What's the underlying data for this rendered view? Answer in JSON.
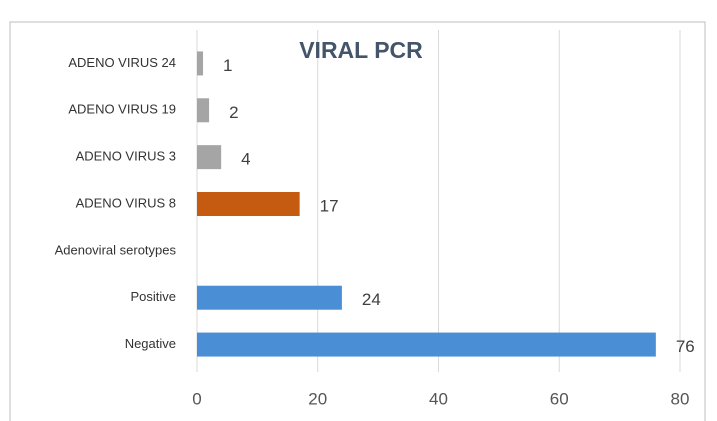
{
  "chart_data": {
    "type": "bar",
    "orientation": "horizontal",
    "title": "VIRAL PCR",
    "categories": [
      "ADENO VIRUS 24",
      "ADENO VIRUS 19",
      "ADENO VIRUS 3",
      "ADENO VIRUS 8",
      "Adenoviral serotypes",
      "Positive",
      "Negative"
    ],
    "values": [
      1,
      2,
      4,
      17,
      null,
      24,
      76
    ],
    "colors": [
      "#a5a5a5",
      "#a5a5a5",
      "#a5a5a5",
      "#c55a11",
      null,
      "#4a8fd6",
      "#4a8fd6"
    ],
    "xlim": [
      0,
      80
    ],
    "xticks": [
      0,
      20,
      40,
      60,
      80
    ],
    "grid": true
  }
}
